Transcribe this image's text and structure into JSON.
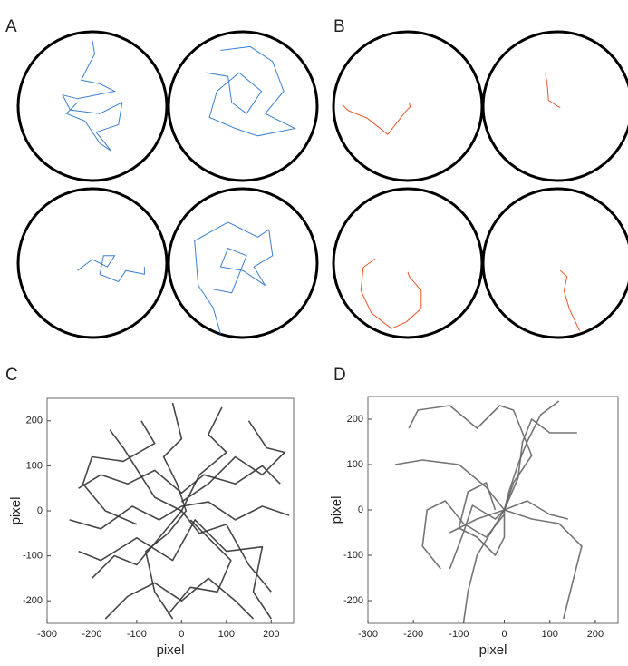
{
  "chart_data": [
    {
      "type": "arena",
      "panel": "A",
      "color": "#3a7fd0",
      "xlim": [
        -1,
        1
      ],
      "ylim": [
        -1,
        1
      ],
      "series": [
        {
          "x": [
            0,
            0.03,
            -0.05,
            -0.15,
            0.1,
            0.3,
            -0.2,
            -0.4,
            -0.3,
            0.1,
            0.4,
            0.35,
            0.05,
            0.25,
            0.1,
            -0.1,
            -0.35,
            -0.2
          ],
          "y": [
            0.88,
            0.7,
            0.55,
            0.35,
            0.3,
            0.2,
            0.1,
            0.15,
            -0.05,
            -0.1,
            0.05,
            -0.25,
            -0.35,
            -0.6,
            -0.5,
            -0.2,
            -0.1,
            0.05
          ]
        },
        {
          "x": [
            -0.3,
            0.1,
            0.4,
            0.55,
            0.3,
            0.7,
            0.2,
            -0.1,
            -0.45,
            -0.35,
            -0.05,
            0.25,
            0.05,
            -0.15,
            -0.2,
            -0.5
          ],
          "y": [
            0.75,
            0.8,
            0.6,
            0.2,
            -0.1,
            -0.3,
            -0.4,
            -0.3,
            -0.15,
            0.2,
            0.45,
            0.2,
            -0.1,
            0.05,
            0.4,
            0.45
          ]
        },
        {
          "x": [
            -0.2,
            0,
            0.2,
            0.3,
            0.15,
            0.1,
            0.35,
            0.45,
            0.7,
            0.7
          ],
          "y": [
            -0.1,
            0.05,
            -0.05,
            0.1,
            0.1,
            -0.15,
            -0.25,
            -0.1,
            -0.15,
            -0.05
          ]
        },
        {
          "x": [
            -0.3,
            -0.4,
            -0.6,
            -0.65,
            -0.2,
            0.2,
            0.35,
            0.4,
            0.15,
            0.3,
            0,
            -0.3,
            -0.2,
            0.05,
            -0.15,
            -0.4
          ],
          "y": [
            -0.95,
            -0.6,
            -0.3,
            0.3,
            0.55,
            0.35,
            0.45,
            0.1,
            -0.05,
            -0.3,
            -0.1,
            -0.05,
            0.2,
            0.1,
            -0.4,
            -0.35
          ]
        }
      ]
    },
    {
      "type": "arena",
      "panel": "B",
      "color": "#e8542a",
      "xlim": [
        -1,
        1
      ],
      "ylim": [
        -1,
        1
      ],
      "series": [
        {
          "x": [
            -0.88,
            -0.8,
            -0.55,
            -0.27,
            -0.02,
            0.03,
            0.02
          ],
          "y": [
            0.02,
            -0.06,
            -0.16,
            -0.38,
            -0.06,
            -0.01,
            0.05
          ]
        },
        {
          "x": [
            -0.16,
            -0.13,
            -0.12,
            0,
            0.04
          ],
          "y": [
            0.45,
            0.24,
            0.08,
            0,
            -0.02
          ]
        },
        {
          "x": [
            -0.44,
            -0.6,
            -0.63,
            -0.49,
            -0.22,
            -0.02,
            0.18,
            0.18,
            0.02,
            0
          ],
          "y": [
            0.06,
            -0.06,
            -0.37,
            -0.67,
            -0.88,
            -0.79,
            -0.61,
            -0.37,
            -0.18,
            -0.12
          ]
        },
        {
          "x": [
            0.04,
            0.13,
            0.09,
            0.16,
            0.3
          ],
          "y": [
            -0.1,
            -0.18,
            -0.37,
            -0.61,
            -0.91
          ]
        }
      ]
    },
    {
      "type": "line",
      "panel": "C",
      "xlabel": "pixel",
      "ylabel": "pixel",
      "color": "#333333",
      "xlim": [
        -300,
        250
      ],
      "ylim": [
        -250,
        250
      ],
      "xticks": [
        -300,
        -200,
        -100,
        0,
        100,
        200
      ],
      "yticks": [
        -200,
        -100,
        0,
        100,
        200
      ],
      "series": [
        {
          "x": [
            -230,
            -180,
            -120,
            -60,
            0,
            50,
            120,
            180,
            220
          ],
          "y": [
            50,
            80,
            60,
            90,
            40,
            80,
            60,
            100,
            60
          ]
        },
        {
          "x": [
            -200,
            -150,
            -100,
            -50,
            0,
            40,
            100,
            150,
            200
          ],
          "y": [
            -150,
            -100,
            -120,
            -60,
            0,
            -50,
            -30,
            -120,
            -180
          ]
        },
        {
          "x": [
            -20,
            0,
            -40,
            -10,
            10,
            -30,
            -80,
            -60,
            -20
          ],
          "y": [
            240,
            160,
            120,
            60,
            0,
            -50,
            -90,
            -180,
            -240
          ]
        },
        {
          "x": [
            -170,
            -120,
            -60,
            0,
            60,
            120,
            160
          ],
          "y": [
            -240,
            -190,
            -160,
            -200,
            -150,
            -200,
            -240
          ]
        },
        {
          "x": [
            -250,
            -180,
            -110,
            -50,
            0,
            60,
            120,
            180,
            240
          ],
          "y": [
            -20,
            -40,
            10,
            -20,
            10,
            20,
            -20,
            10,
            -10
          ]
        },
        {
          "x": [
            90,
            60,
            100,
            40,
            0,
            -60,
            -130,
            -160
          ],
          "y": [
            230,
            170,
            130,
            80,
            0,
            30,
            140,
            180
          ]
        },
        {
          "x": [
            200,
            160,
            180,
            100,
            30,
            -20,
            -100,
            -180,
            -230
          ],
          "y": [
            -240,
            -180,
            -80,
            -90,
            -20,
            -110,
            -60,
            -110,
            -90
          ]
        },
        {
          "x": [
            -90,
            -60,
            -130,
            -200,
            -220,
            -170,
            -100
          ],
          "y": [
            200,
            150,
            110,
            120,
            60,
            0,
            -30
          ]
        },
        {
          "x": [
            150,
            190,
            230,
            180,
            120,
            60,
            0
          ],
          "y": [
            200,
            140,
            130,
            80,
            120,
            60,
            20
          ]
        },
        {
          "x": [
            -30,
            20,
            80,
            110,
            60,
            20
          ],
          "y": [
            -230,
            -170,
            -180,
            -110,
            -60,
            -20
          ]
        }
      ]
    },
    {
      "type": "line",
      "panel": "D",
      "xlabel": "pixel",
      "ylabel": "pixel",
      "color": "#666666",
      "xlim": [
        -300,
        250
      ],
      "ylim": [
        -250,
        250
      ],
      "xticks": [
        -300,
        -200,
        -100,
        0,
        100,
        200
      ],
      "yticks": [
        -200,
        -100,
        0,
        100,
        200
      ],
      "series": [
        {
          "x": [
            -90,
            -80,
            -60,
            -30,
            0
          ],
          "y": [
            -250,
            -180,
            -100,
            -50,
            0
          ]
        },
        {
          "x": [
            -240,
            -180,
            -100,
            -40,
            0,
            60,
            120,
            170,
            150,
            130
          ],
          "y": [
            100,
            110,
            100,
            50,
            0,
            -20,
            -30,
            -80,
            -160,
            -240
          ]
        },
        {
          "x": [
            -210,
            -190,
            -120,
            -60,
            -10,
            20,
            40,
            60,
            20,
            0
          ],
          "y": [
            180,
            220,
            230,
            180,
            230,
            220,
            170,
            120,
            60,
            0
          ]
        },
        {
          "x": [
            -120,
            -90,
            -70,
            -20,
            0,
            50,
            100,
            140
          ],
          "y": [
            -130,
            -50,
            10,
            -20,
            0,
            20,
            -10,
            -20
          ]
        },
        {
          "x": [
            -20,
            -40,
            -80,
            -100,
            -60,
            -20,
            0,
            0
          ],
          "y": [
            0,
            60,
            40,
            -40,
            -60,
            -100,
            -60,
            0
          ]
        },
        {
          "x": [
            120,
            80,
            50,
            30,
            10,
            0,
            -60,
            -120
          ],
          "y": [
            240,
            210,
            150,
            100,
            40,
            0,
            -20,
            -50
          ]
        },
        {
          "x": [
            -140,
            -180,
            -170,
            -130,
            -90,
            -40,
            0
          ],
          "y": [
            -130,
            -80,
            0,
            20,
            -30,
            -60,
            -10
          ]
        },
        {
          "x": [
            160,
            100,
            60,
            40,
            30,
            0
          ],
          "y": [
            170,
            170,
            200,
            150,
            70,
            0
          ]
        }
      ]
    }
  ]
}
